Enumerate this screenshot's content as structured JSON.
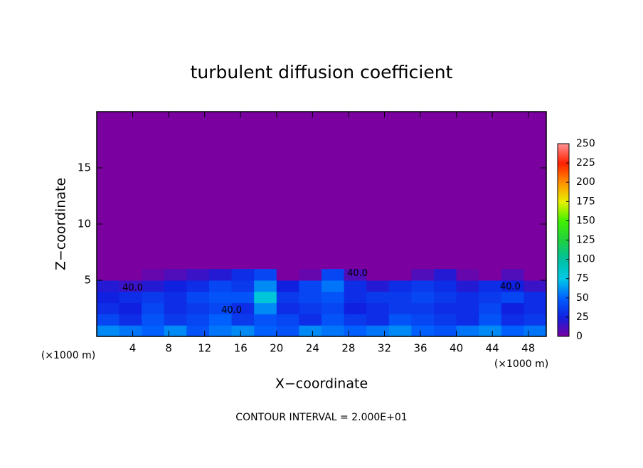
{
  "chart_data": {
    "type": "heatmap",
    "title": "turbulent diffusion coefficient",
    "xlabel": "X−coordinate",
    "ylabel": "Z−coordinate",
    "x_unit_labels": [
      "(×1000 m)",
      "(×1000 m)"
    ],
    "footnote": "CONTOUR INTERVAL = 2.000E+01",
    "contour_labels": [
      "40.0",
      "40.0",
      "40.0",
      "40.0"
    ],
    "xlim": [
      0,
      50
    ],
    "ylim": [
      0,
      20
    ],
    "xticks": [
      4,
      8,
      12,
      16,
      20,
      24,
      28,
      32,
      36,
      40,
      44,
      48
    ],
    "yticks": [
      5,
      10,
      15
    ],
    "x_edges": [
      0,
      2.5,
      5,
      7.5,
      10,
      12.5,
      15,
      17.5,
      20,
      22.5,
      25,
      27.5,
      30,
      32.5,
      35,
      37.5,
      40,
      42.5,
      45,
      47.5,
      50
    ],
    "z_edges": [
      0,
      1,
      2,
      3,
      4,
      5,
      6
    ],
    "z": [
      [
        60,
        55,
        50,
        60,
        45,
        55,
        60,
        50,
        45,
        60,
        55,
        50,
        55,
        60,
        50,
        45,
        55,
        60,
        50,
        55
      ],
      [
        40,
        30,
        45,
        35,
        40,
        50,
        35,
        45,
        40,
        30,
        45,
        35,
        30,
        45,
        40,
        35,
        30,
        45,
        30,
        35
      ],
      [
        30,
        25,
        40,
        30,
        35,
        40,
        30,
        60,
        30,
        35,
        40,
        25,
        30,
        35,
        35,
        30,
        30,
        40,
        25,
        30
      ],
      [
        25,
        30,
        35,
        30,
        40,
        45,
        45,
        80,
        35,
        40,
        45,
        30,
        35,
        35,
        40,
        35,
        30,
        35,
        40,
        30
      ],
      [
        20,
        15,
        20,
        25,
        30,
        40,
        35,
        60,
        25,
        40,
        55,
        30,
        20,
        30,
        35,
        30,
        20,
        30,
        25,
        15
      ],
      [
        0,
        0,
        5,
        10,
        15,
        20,
        30,
        40,
        0,
        5,
        40,
        10,
        0,
        0,
        10,
        20,
        5,
        0,
        10,
        0
      ]
    ],
    "clim": [
      0,
      250
    ],
    "cticks": [
      0,
      25,
      50,
      75,
      100,
      125,
      150,
      175,
      200,
      225,
      250
    ],
    "colorscale": [
      "#7b00a0",
      "#1020e0",
      "#0060ff",
      "#00c8e8",
      "#00c0a0",
      "#20d040",
      "#40f000",
      "#e8f000",
      "#ff9000",
      "#ff2000",
      "#ff9090"
    ]
  }
}
